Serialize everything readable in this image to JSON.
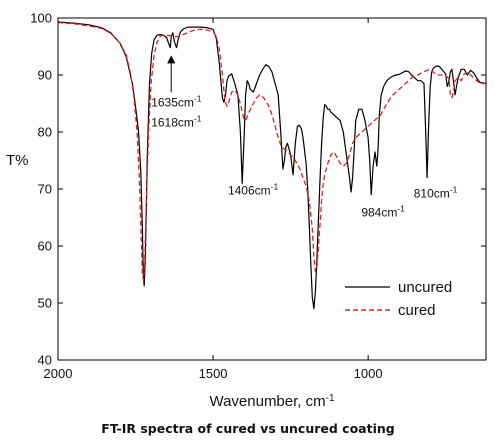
{
  "chart_data": {
    "type": "line",
    "caption": "FT-IR spectra of cured vs uncured coating",
    "xlabel_main": "Wavenumber, cm",
    "xlabel_sup": "-1",
    "ylabel": "T%",
    "xlim": [
      2000,
      620
    ],
    "ylim": [
      40,
      100
    ],
    "x_ticks": [
      2000,
      1500,
      1000
    ],
    "y_ticks": [
      40,
      50,
      60,
      70,
      80,
      90,
      100
    ],
    "grid": false,
    "legend_position": "bottom-right",
    "series": [
      {
        "name": "uncured",
        "color": "#000000",
        "style": "solid",
        "x": [
          2000,
          1950,
          1900,
          1860,
          1830,
          1800,
          1780,
          1760,
          1750,
          1740,
          1733,
          1728,
          1725,
          1722,
          1718,
          1712,
          1705,
          1698,
          1690,
          1680,
          1670,
          1660,
          1650,
          1643,
          1638,
          1635,
          1630,
          1625,
          1618,
          1612,
          1605,
          1595,
          1580,
          1560,
          1540,
          1520,
          1500,
          1490,
          1480,
          1470,
          1465,
          1460,
          1455,
          1450,
          1440,
          1430,
          1420,
          1412,
          1406,
          1400,
          1395,
          1390,
          1385,
          1380,
          1370,
          1360,
          1350,
          1340,
          1330,
          1320,
          1310,
          1300,
          1290,
          1282,
          1275,
          1270,
          1265,
          1260,
          1250,
          1242,
          1235,
          1228,
          1222,
          1215,
          1210,
          1200,
          1195,
          1190,
          1185,
          1180,
          1175,
          1170,
          1165,
          1160,
          1155,
          1150,
          1145,
          1140,
          1135,
          1130,
          1125,
          1120,
          1110,
          1100,
          1090,
          1080,
          1070,
          1060,
          1055,
          1050,
          1045,
          1040,
          1030,
          1020,
          1010,
          1000,
          995,
          990,
          984,
          978,
          972,
          968,
          964,
          958,
          950,
          940,
          930,
          920,
          910,
          900,
          890,
          880,
          870,
          860,
          850,
          840,
          830,
          820,
          815,
          810,
          805,
          800,
          795,
          790,
          780,
          770,
          760,
          750,
          745,
          740,
          735,
          730,
          725,
          720,
          710,
          700,
          690,
          680,
          670,
          660,
          650,
          640,
          630,
          620
        ],
        "y": [
          99.3,
          99.1,
          98.8,
          98.3,
          97.4,
          95.6,
          93.2,
          88.5,
          84.5,
          80.0,
          73.0,
          63.0,
          55.0,
          53.0,
          59.0,
          76.0,
          88.5,
          93.8,
          96.2,
          97.0,
          97.1,
          97.0,
          96.6,
          95.5,
          94.8,
          96.7,
          97.4,
          95.9,
          94.8,
          96.3,
          97.6,
          98.1,
          98.4,
          98.4,
          98.4,
          98.3,
          98.0,
          96.5,
          92.0,
          86.0,
          85.2,
          86.5,
          89.0,
          89.8,
          90.2,
          88.5,
          86.5,
          80.0,
          71.0,
          79.0,
          86.5,
          89.0,
          88.5,
          87.5,
          87.0,
          88.5,
          90.0,
          91.0,
          91.8,
          91.5,
          90.5,
          88.5,
          86.5,
          80.0,
          73.5,
          75.0,
          77.5,
          78.0,
          76.0,
          72.5,
          78.0,
          81.0,
          81.2,
          80.5,
          79.0,
          74.5,
          70.0,
          64.0,
          57.0,
          51.0,
          49.0,
          52.0,
          58.0,
          65.0,
          72.0,
          78.0,
          82.5,
          84.8,
          84.5,
          84.0,
          84.0,
          83.5,
          83.0,
          82.5,
          82.0,
          80.0,
          76.0,
          72.0,
          69.5,
          72.0,
          77.0,
          82.0,
          84.0,
          84.0,
          82.0,
          79.0,
          75.0,
          69.0,
          74.0,
          76.5,
          74.0,
          77.0,
          83.0,
          86.5,
          88.0,
          89.0,
          89.5,
          89.8,
          90.0,
          90.1,
          90.4,
          90.7,
          90.6,
          90.0,
          89.5,
          89.0,
          89.0,
          88.5,
          81.0,
          72.0,
          81.0,
          88.0,
          90.5,
          91.2,
          91.6,
          91.5,
          90.8,
          90.2,
          88.0,
          88.8,
          90.5,
          91.0,
          89.0,
          86.5,
          89.5,
          91.0,
          91.0,
          90.0,
          90.8,
          90.4,
          89.5,
          88.7,
          88.6,
          88.5
        ]
      },
      {
        "name": "cured",
        "color": "#e02020",
        "style": "dashed",
        "x": [
          2000,
          1950,
          1900,
          1860,
          1830,
          1800,
          1780,
          1765,
          1755,
          1745,
          1738,
          1732,
          1728,
          1724,
          1720,
          1715,
          1708,
          1700,
          1690,
          1680,
          1670,
          1660,
          1650,
          1640,
          1630,
          1620,
          1610,
          1600,
          1580,
          1560,
          1540,
          1520,
          1500,
          1490,
          1480,
          1470,
          1462,
          1455,
          1448,
          1440,
          1430,
          1420,
          1410,
          1402,
          1395,
          1388,
          1380,
          1370,
          1360,
          1350,
          1340,
          1330,
          1320,
          1310,
          1300,
          1290,
          1280,
          1270,
          1260,
          1250,
          1240,
          1230,
          1220,
          1210,
          1200,
          1190,
          1180,
          1175,
          1170,
          1165,
          1160,
          1155,
          1150,
          1145,
          1140,
          1130,
          1120,
          1110,
          1100,
          1090,
          1080,
          1070,
          1060,
          1050,
          1040,
          1030,
          1020,
          1010,
          1000,
          990,
          980,
          970,
          960,
          950,
          940,
          930,
          920,
          910,
          900,
          890,
          880,
          870,
          860,
          850,
          840,
          830,
          820,
          810,
          800,
          790,
          780,
          770,
          760,
          750,
          740,
          735,
          730,
          725,
          720,
          710,
          700,
          690,
          680,
          670,
          660,
          650,
          640,
          630,
          620
        ],
        "y": [
          99.2,
          99.0,
          98.6,
          98.2,
          97.3,
          95.6,
          93.5,
          90.0,
          86.0,
          80.0,
          72.0,
          62.0,
          55.0,
          54.0,
          58.0,
          68.0,
          80.0,
          88.5,
          93.5,
          95.8,
          96.8,
          97.0,
          97.0,
          96.9,
          96.8,
          96.7,
          96.8,
          97.0,
          97.5,
          97.9,
          98.0,
          97.9,
          97.6,
          96.8,
          94.5,
          90.0,
          85.5,
          84.5,
          85.5,
          87.0,
          87.3,
          86.5,
          84.5,
          82.5,
          82.0,
          83.0,
          84.0,
          85.0,
          86.0,
          86.5,
          86.2,
          85.5,
          84.5,
          83.0,
          81.0,
          79.0,
          77.5,
          77.0,
          76.5,
          76.0,
          75.5,
          74.5,
          73.5,
          72.0,
          70.5,
          68.0,
          63.0,
          58.0,
          55.5,
          56.5,
          60.0,
          64.0,
          68.0,
          71.0,
          72.5,
          74.5,
          76.0,
          76.5,
          75.5,
          74.5,
          74.0,
          74.5,
          76.0,
          78.0,
          79.0,
          79.5,
          80.0,
          80.5,
          81.0,
          81.5,
          82.0,
          82.5,
          83.0,
          84.0,
          85.0,
          85.8,
          86.5,
          87.0,
          87.5,
          88.0,
          88.5,
          89.0,
          89.5,
          89.8,
          90.0,
          90.3,
          90.6,
          90.8,
          91.0,
          90.5,
          90.0,
          90.0,
          90.0,
          89.8,
          89.5,
          86.5,
          86.0,
          87.0,
          89.0,
          89.5,
          89.0,
          90.2,
          90.5,
          90.0,
          89.5,
          89.0,
          88.6,
          88.5,
          88.5
        ]
      }
    ],
    "annotations": [
      {
        "base": "1635cm",
        "sup": "-1",
        "x": 1635,
        "y": 84.5,
        "arrow_to": [
          1635,
          93.8
        ],
        "anchor": "start"
      },
      {
        "base": "1618cm",
        "sup": "-1",
        "x": 1635,
        "y": 81.0,
        "arrow_to": null,
        "anchor": "start"
      },
      {
        "base": "1406cm",
        "sup": "-1",
        "x": 1452,
        "y": 69.0,
        "arrow_to": null,
        "anchor": "start"
      },
      {
        "base": "984cm",
        "sup": "-1",
        "x": 1022,
        "y": 65.2,
        "arrow_to": null,
        "anchor": "start"
      },
      {
        "base": "810cm",
        "sup": "-1",
        "x": 853,
        "y": 68.5,
        "arrow_to": null,
        "anchor": "start"
      }
    ]
  }
}
